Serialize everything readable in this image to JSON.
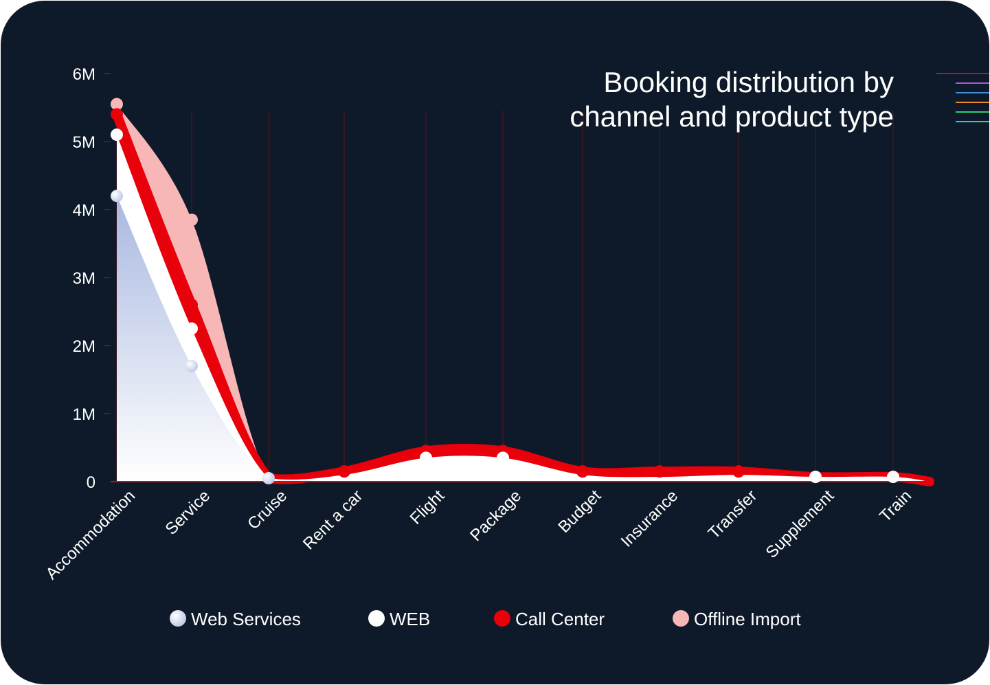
{
  "chart_data": {
    "type": "area",
    "title_lines": [
      "Booking distribution by",
      "channel and product type"
    ],
    "categories": [
      "Accommodation",
      "Service",
      "Cruise",
      "Rent a car",
      "Flight",
      "Package",
      "Budget",
      "Insurance",
      "Transfer",
      "Supplement",
      "Train"
    ],
    "y_ticks": [
      {
        "value": 0,
        "label": "0"
      },
      {
        "value": 1000000,
        "label": "1M"
      },
      {
        "value": 2000000,
        "label": "2M"
      },
      {
        "value": 3000000,
        "label": "3M"
      },
      {
        "value": 4000000,
        "label": "4M"
      },
      {
        "value": 5000000,
        "label": "5M"
      },
      {
        "value": 6000000,
        "label": "6M"
      }
    ],
    "ylim": [
      0,
      6000000
    ],
    "series": [
      {
        "name": "Web Services",
        "color": "#c3cdea",
        "values": [
          4200000,
          1700000,
          50000,
          0,
          0,
          0,
          0,
          0,
          0,
          0,
          0
        ]
      },
      {
        "name": "WEB",
        "color": "#ffffff",
        "values": [
          5100000,
          2250000,
          50000,
          100000,
          350000,
          350000,
          100000,
          70000,
          100000,
          70000,
          70000
        ]
      },
      {
        "name": "Call Center",
        "color": "#e8000b",
        "values": [
          5400000,
          2600000,
          50000,
          150000,
          450000,
          450000,
          150000,
          150000,
          150000,
          70000,
          70000
        ]
      },
      {
        "name": "Offline Import",
        "color": "#f7b7b7",
        "values": [
          5550000,
          3850000,
          50000,
          150000,
          450000,
          450000,
          150000,
          150000,
          150000,
          70000,
          70000
        ]
      }
    ],
    "legend": {
      "position": "bottom"
    },
    "grid": "vertical"
  },
  "legend_items": [
    {
      "label": "Web Services",
      "color": "#c3cdea"
    },
    {
      "label": "WEB",
      "color": "#ffffff"
    },
    {
      "label": "Call Center",
      "color": "#e8000b"
    },
    {
      "label": "Offline Import",
      "color": "#f7b7b7"
    }
  ],
  "corner_lines": [
    "#e8000b",
    "#a25ddc",
    "#3d8fe0",
    "#f08a24",
    "#2ecc71",
    "#1fd1cf"
  ]
}
